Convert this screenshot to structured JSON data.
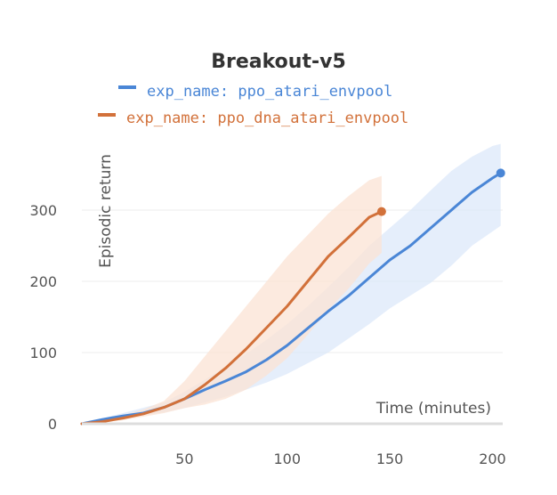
{
  "chart_data": {
    "type": "line",
    "title": "Breakout-v5",
    "xlabel": "Time (minutes)",
    "ylabel": "Episodic return",
    "xlim": [
      0,
      205
    ],
    "ylim": [
      0,
      410
    ],
    "x_ticks": [
      50,
      100,
      150,
      200
    ],
    "y_ticks": [
      0,
      100,
      200,
      300
    ],
    "grid": true,
    "legend_position": "top",
    "series": [
      {
        "name": "exp_name: ppo_atari_envpool",
        "color": "#4a86d6",
        "band_color": "#dce8fa",
        "points": [
          [
            0,
            0
          ],
          [
            10,
            6
          ],
          [
            20,
            11
          ],
          [
            30,
            15
          ],
          [
            40,
            23
          ],
          [
            50,
            35
          ],
          [
            60,
            48
          ],
          [
            70,
            60
          ],
          [
            80,
            73
          ],
          [
            90,
            90
          ],
          [
            100,
            110
          ],
          [
            110,
            134
          ],
          [
            120,
            158
          ],
          [
            130,
            180
          ],
          [
            140,
            205
          ],
          [
            150,
            230
          ],
          [
            160,
            250
          ],
          [
            170,
            275
          ],
          [
            180,
            300
          ],
          [
            190,
            325
          ],
          [
            200,
            345
          ],
          [
            204,
            352
          ]
        ],
        "lower": [
          [
            0,
            0
          ],
          [
            20,
            8
          ],
          [
            40,
            16
          ],
          [
            50,
            22
          ],
          [
            60,
            30
          ],
          [
            70,
            38
          ],
          [
            80,
            48
          ],
          [
            90,
            58
          ],
          [
            100,
            70
          ],
          [
            110,
            85
          ],
          [
            120,
            100
          ],
          [
            130,
            120
          ],
          [
            140,
            140
          ],
          [
            150,
            162
          ],
          [
            160,
            180
          ],
          [
            170,
            198
          ],
          [
            180,
            222
          ],
          [
            190,
            250
          ],
          [
            200,
            270
          ],
          [
            204,
            278
          ]
        ],
        "upper": [
          [
            0,
            0
          ],
          [
            20,
            15
          ],
          [
            40,
            30
          ],
          [
            50,
            45
          ],
          [
            60,
            62
          ],
          [
            70,
            80
          ],
          [
            80,
            98
          ],
          [
            90,
            118
          ],
          [
            100,
            140
          ],
          [
            110,
            165
          ],
          [
            120,
            192
          ],
          [
            130,
            220
          ],
          [
            140,
            250
          ],
          [
            150,
            275
          ],
          [
            160,
            300
          ],
          [
            170,
            328
          ],
          [
            180,
            355
          ],
          [
            190,
            375
          ],
          [
            200,
            390
          ],
          [
            204,
            393
          ]
        ],
        "end_marker": true
      },
      {
        "name": "exp_name: ppo_dna_atari_envpool",
        "color": "#d2713a",
        "band_color": "#fbe3d4",
        "points": [
          [
            0,
            0
          ],
          [
            10,
            3
          ],
          [
            20,
            8
          ],
          [
            30,
            14
          ],
          [
            40,
            23
          ],
          [
            50,
            35
          ],
          [
            60,
            55
          ],
          [
            70,
            78
          ],
          [
            80,
            105
          ],
          [
            90,
            135
          ],
          [
            100,
            165
          ],
          [
            110,
            200
          ],
          [
            120,
            235
          ],
          [
            130,
            262
          ],
          [
            140,
            290
          ],
          [
            146,
            298
          ]
        ],
        "lower": [
          [
            0,
            0
          ],
          [
            20,
            5
          ],
          [
            30,
            10
          ],
          [
            40,
            15
          ],
          [
            50,
            22
          ],
          [
            60,
            27
          ],
          [
            70,
            35
          ],
          [
            80,
            48
          ],
          [
            90,
            68
          ],
          [
            100,
            92
          ],
          [
            110,
            125
          ],
          [
            120,
            160
          ],
          [
            130,
            190
          ],
          [
            140,
            225
          ],
          [
            146,
            240
          ]
        ],
        "upper": [
          [
            0,
            0
          ],
          [
            20,
            12
          ],
          [
            30,
            20
          ],
          [
            40,
            32
          ],
          [
            50,
            60
          ],
          [
            60,
            95
          ],
          [
            70,
            130
          ],
          [
            80,
            165
          ],
          [
            90,
            200
          ],
          [
            100,
            235
          ],
          [
            110,
            265
          ],
          [
            120,
            295
          ],
          [
            130,
            320
          ],
          [
            140,
            342
          ],
          [
            146,
            348
          ]
        ],
        "end_marker": true
      }
    ]
  }
}
